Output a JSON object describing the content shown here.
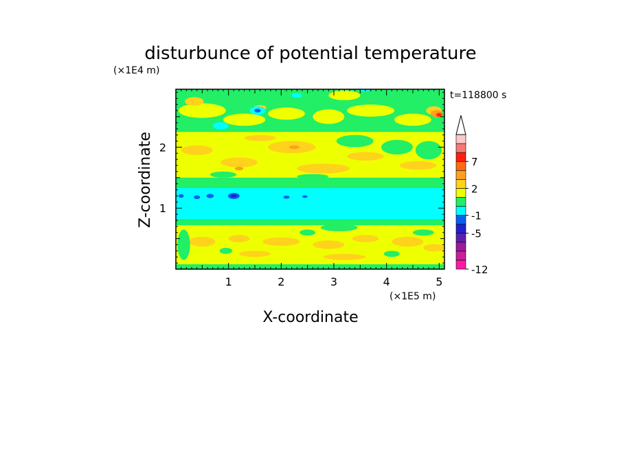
{
  "chart_data": {
    "type": "heatmap",
    "title": "disturbunce of potential temperature",
    "xlabel": "X-coordinate",
    "ylabel": "Z-coordinate",
    "x_scale_label": "(×1E5 m)",
    "y_scale_label": "(×1E4 m)",
    "time_label": "t=118800 s",
    "xlim": [
      0,
      5.1
    ],
    "ylim": [
      0,
      2.95
    ],
    "x_ticks": [
      "1",
      "2",
      "3",
      "4",
      "5"
    ],
    "y_ticks": [
      "1",
      "2"
    ],
    "colorbar": {
      "level_colors": [
        "#ff1aa6",
        "#c8209a",
        "#9b1b9b",
        "#5b1fb0",
        "#2020d0",
        "#0a5ef0",
        "#00ffff",
        "#22ee66",
        "#eeff00",
        "#ffd21c",
        "#ffa01e",
        "#ff6a10",
        "#ff1e10",
        "#f47a7a",
        "#ffc8c8"
      ],
      "extend_top_color": "#ffffff",
      "labels": [
        "-12",
        "-5",
        "-1",
        "2",
        "7"
      ]
    },
    "bands": [
      {
        "z_range": [
          0.0,
          0.08
        ],
        "value_level": "green"
      },
      {
        "z_range": [
          0.08,
          0.72
        ],
        "value_level": "yellow-orange",
        "note": "warm anomalies ~2"
      },
      {
        "z_range": [
          0.72,
          0.8
        ],
        "value_level": "green"
      },
      {
        "z_range": [
          0.8,
          1.35
        ],
        "value_level": "cyan",
        "note": "≈ -1 to -2 with blue cores near x=0.1–1.2"
      },
      {
        "z_range": [
          1.35,
          1.5
        ],
        "value_level": "green"
      },
      {
        "z_range": [
          1.5,
          2.25
        ],
        "value_level": "yellow-orange"
      },
      {
        "z_range": [
          2.25,
          2.95
        ],
        "value_level": "mixed green/yellow/orange, red core near x=5.0, z=2.5"
      }
    ]
  }
}
